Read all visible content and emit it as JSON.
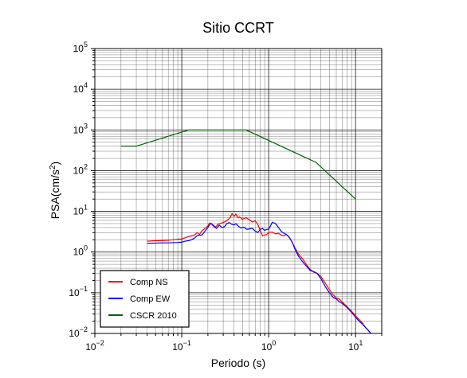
{
  "chart_data": {
    "type": "line",
    "title": "Sitio CCRT",
    "xlabel": "Periodo (s)",
    "ylabel_base": "PSA(cm/s",
    "ylabel_sup": "2",
    "ylabel_close": ")",
    "xscale": "log",
    "yscale": "log",
    "xlim": [
      0.01,
      20
    ],
    "ylim": [
      0.01,
      100000
    ],
    "grid": true,
    "legend_position": "bottom-left",
    "x_major_ticks": [
      {
        "value": 0.01,
        "base": "10",
        "exp": "−2"
      },
      {
        "value": 0.1,
        "base": "10",
        "exp": "−1"
      },
      {
        "value": 1,
        "base": "10",
        "exp": "0"
      },
      {
        "value": 10,
        "base": "10",
        "exp": "1"
      }
    ],
    "y_major_ticks": [
      {
        "value": 0.01,
        "base": "10",
        "exp": "−2"
      },
      {
        "value": 0.1,
        "base": "10",
        "exp": "−1"
      },
      {
        "value": 1,
        "base": "10",
        "exp": "0"
      },
      {
        "value": 10,
        "base": "10",
        "exp": "1"
      },
      {
        "value": 100,
        "base": "10",
        "exp": "2"
      },
      {
        "value": 1000,
        "base": "10",
        "exp": "3"
      },
      {
        "value": 10000,
        "base": "10",
        "exp": "4"
      },
      {
        "value": 100000,
        "base": "10",
        "exp": "5"
      }
    ],
    "series": [
      {
        "name": "Comp NS",
        "color": "#ff0000",
        "points": [
          [
            0.04,
            1.85
          ],
          [
            0.05,
            1.9
          ],
          [
            0.06,
            1.92
          ],
          [
            0.07,
            1.95
          ],
          [
            0.08,
            2.0
          ],
          [
            0.09,
            2.05
          ],
          [
            0.1,
            2.1
          ],
          [
            0.11,
            2.25
          ],
          [
            0.12,
            2.4
          ],
          [
            0.13,
            2.5
          ],
          [
            0.14,
            2.6
          ],
          [
            0.15,
            3.0
          ],
          [
            0.16,
            2.7
          ],
          [
            0.17,
            3.3
          ],
          [
            0.18,
            3.6
          ],
          [
            0.19,
            4.0
          ],
          [
            0.2,
            4.4
          ],
          [
            0.21,
            5.2
          ],
          [
            0.22,
            4.9
          ],
          [
            0.23,
            4.4
          ],
          [
            0.24,
            4.0
          ],
          [
            0.25,
            4.3
          ],
          [
            0.26,
            4.8
          ],
          [
            0.28,
            5.1
          ],
          [
            0.3,
            5.3
          ],
          [
            0.32,
            5.7
          ],
          [
            0.34,
            6.2
          ],
          [
            0.36,
            7.0
          ],
          [
            0.38,
            8.8
          ],
          [
            0.4,
            7.5
          ],
          [
            0.42,
            8.6
          ],
          [
            0.44,
            7.0
          ],
          [
            0.46,
            7.3
          ],
          [
            0.5,
            6.4
          ],
          [
            0.55,
            7.0
          ],
          [
            0.6,
            6.2
          ],
          [
            0.65,
            5.5
          ],
          [
            0.7,
            5.8
          ],
          [
            0.75,
            4.8
          ],
          [
            0.8,
            3.4
          ],
          [
            0.85,
            2.5
          ],
          [
            0.9,
            2.6
          ],
          [
            0.95,
            2.7
          ],
          [
            1.0,
            3.0
          ],
          [
            1.1,
            3.1
          ],
          [
            1.2,
            2.8
          ],
          [
            1.3,
            2.9
          ],
          [
            1.4,
            2.6
          ],
          [
            1.5,
            2.5
          ],
          [
            1.6,
            2.7
          ],
          [
            1.7,
            2.4
          ],
          [
            1.8,
            2.0
          ],
          [
            2.0,
            1.3
          ],
          [
            2.2,
            0.9
          ],
          [
            2.5,
            0.65
          ],
          [
            2.8,
            0.45
          ],
          [
            3.0,
            0.38
          ],
          [
            3.3,
            0.32
          ],
          [
            3.6,
            0.3
          ],
          [
            4.0,
            0.25
          ],
          [
            4.5,
            0.17
          ],
          [
            5.0,
            0.12
          ],
          [
            5.5,
            0.09
          ],
          [
            6.0,
            0.075
          ],
          [
            6.5,
            0.07
          ],
          [
            7.0,
            0.06
          ],
          [
            8.0,
            0.045
          ],
          [
            9.0,
            0.035
          ],
          [
            10.0,
            0.027
          ],
          [
            11.0,
            0.022
          ],
          [
            12.0,
            0.018
          ],
          [
            13.0,
            0.014
          ],
          [
            15.0,
            0.01
          ]
        ]
      },
      {
        "name": "Comp EW",
        "color": "#0000ff",
        "points": [
          [
            0.04,
            1.65
          ],
          [
            0.05,
            1.66
          ],
          [
            0.06,
            1.68
          ],
          [
            0.07,
            1.68
          ],
          [
            0.08,
            1.7
          ],
          [
            0.09,
            1.72
          ],
          [
            0.1,
            1.75
          ],
          [
            0.11,
            1.85
          ],
          [
            0.12,
            1.9
          ],
          [
            0.13,
            2.0
          ],
          [
            0.14,
            2.2
          ],
          [
            0.15,
            2.5
          ],
          [
            0.16,
            2.6
          ],
          [
            0.17,
            2.6
          ],
          [
            0.18,
            3.0
          ],
          [
            0.19,
            3.5
          ],
          [
            0.2,
            4.0
          ],
          [
            0.21,
            4.8
          ],
          [
            0.22,
            5.0
          ],
          [
            0.23,
            4.6
          ],
          [
            0.24,
            4.2
          ],
          [
            0.25,
            3.8
          ],
          [
            0.27,
            4.6
          ],
          [
            0.29,
            4.0
          ],
          [
            0.31,
            4.2
          ],
          [
            0.33,
            5.0
          ],
          [
            0.35,
            5.3
          ],
          [
            0.37,
            4.9
          ],
          [
            0.4,
            4.6
          ],
          [
            0.42,
            5.0
          ],
          [
            0.45,
            4.3
          ],
          [
            0.48,
            3.9
          ],
          [
            0.52,
            4.1
          ],
          [
            0.56,
            3.6
          ],
          [
            0.6,
            3.7
          ],
          [
            0.65,
            3.8
          ],
          [
            0.7,
            3.3
          ],
          [
            0.75,
            3.0
          ],
          [
            0.8,
            3.6
          ],
          [
            0.85,
            3.8
          ],
          [
            0.9,
            3.4
          ],
          [
            0.95,
            3.6
          ],
          [
            1.0,
            3.6
          ],
          [
            1.05,
            4.4
          ],
          [
            1.1,
            5.4
          ],
          [
            1.2,
            5.0
          ],
          [
            1.3,
            4.0
          ],
          [
            1.4,
            3.2
          ],
          [
            1.5,
            2.9
          ],
          [
            1.6,
            2.7
          ],
          [
            1.7,
            2.4
          ],
          [
            1.8,
            2.0
          ],
          [
            1.9,
            1.6
          ],
          [
            2.0,
            1.2
          ],
          [
            2.2,
            0.8
          ],
          [
            2.5,
            0.55
          ],
          [
            2.8,
            0.42
          ],
          [
            3.0,
            0.35
          ],
          [
            3.3,
            0.33
          ],
          [
            3.6,
            0.3
          ],
          [
            4.0,
            0.22
          ],
          [
            4.5,
            0.14
          ],
          [
            5.0,
            0.1
          ],
          [
            5.5,
            0.078
          ],
          [
            6.0,
            0.07
          ],
          [
            6.5,
            0.06
          ],
          [
            7.0,
            0.055
          ],
          [
            8.0,
            0.043
          ],
          [
            9.0,
            0.033
          ],
          [
            10.0,
            0.025
          ],
          [
            11.0,
            0.02
          ],
          [
            12.0,
            0.017
          ],
          [
            13.0,
            0.014
          ],
          [
            14.0,
            0.012
          ],
          [
            15.0,
            0.01
          ]
        ]
      },
      {
        "name": "CSCR 2010",
        "color": "#006400",
        "points": [
          [
            0.02,
            400
          ],
          [
            0.03,
            400
          ],
          [
            0.12,
            1000
          ],
          [
            0.55,
            1000
          ],
          [
            3.5,
            160
          ],
          [
            10.0,
            20
          ]
        ]
      }
    ]
  }
}
